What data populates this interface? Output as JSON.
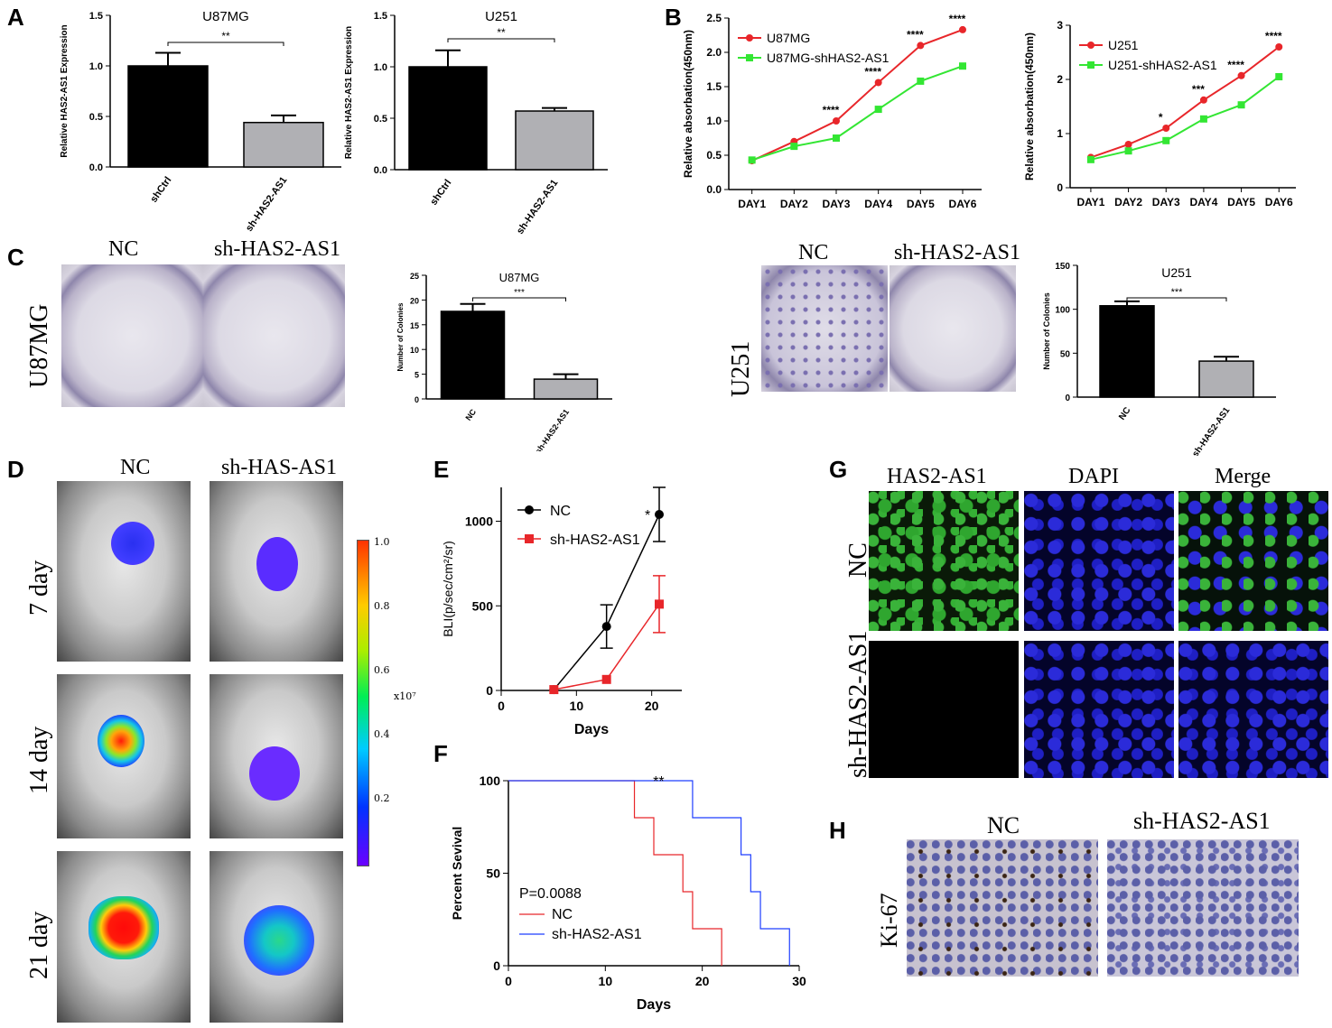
{
  "panels": {
    "a": "A",
    "b": "B",
    "c": "C",
    "d": "D",
    "e": "E",
    "f": "F",
    "g": "G",
    "h": "H"
  },
  "photo_labels": {
    "c_nc": "NC",
    "c_sh": "sh-HAS2-AS1",
    "c_u87": "U87MG",
    "c2_nc": "NC",
    "c2_sh": "sh-HAS2-AS1",
    "c2_u251": "U251",
    "d_nc": "NC",
    "d_sh": "sh-HAS-AS1",
    "d_row1": "7 day",
    "d_row2": "14 day",
    "d_row3": "21 day",
    "d_colorbar_ticks": [
      "1.0",
      "0.8",
      "0.6",
      "0.4",
      "0.2"
    ],
    "d_colorbar_unit": "x10⁷",
    "g_col1": "HAS2-AS1",
    "g_col2": "DAPI",
    "g_col3": "Merge",
    "g_row1": "NC",
    "g_row2": "sh-HAS2-AS1",
    "h_col1": "NC",
    "h_col2": "sh-HAS2-AS1",
    "h_row": "Ki-67"
  },
  "colors": {
    "red": "#e8262a",
    "green": "#33e633",
    "blue": "#1f3fff",
    "bar_black": "#000000",
    "bar_gray": "#b0b0b4"
  },
  "chart_data": [
    {
      "id": "A1",
      "type": "bar",
      "title": "U87MG",
      "ylabel": "Relative HAS2-AS1 Expression",
      "categories": [
        "shCtrl",
        "sh-HAS2-AS1"
      ],
      "values": [
        1.0,
        0.44
      ],
      "errors": [
        0.13,
        0.07
      ],
      "ylim": [
        0,
        1.5
      ],
      "yticks": [
        "0.0",
        "0.5",
        "1.0",
        "1.5"
      ],
      "sig": "**"
    },
    {
      "id": "A2",
      "type": "bar",
      "title": "U251",
      "ylabel": "Relative HAS2-AS1 Expression",
      "categories": [
        "shCtrl",
        "sh-HAS2-AS1"
      ],
      "values": [
        1.0,
        0.57
      ],
      "errors": [
        0.16,
        0.03
      ],
      "ylim": [
        0,
        1.5
      ],
      "yticks": [
        "0.0",
        "0.5",
        "1.0",
        "1.5"
      ],
      "sig": "**"
    },
    {
      "id": "B1",
      "type": "line",
      "ylabel": "Relative absorbation(450nm)",
      "categories": [
        "DAY1",
        "DAY2",
        "DAY3",
        "DAY4",
        "DAY5",
        "DAY6"
      ],
      "ylim": [
        0,
        2.5
      ],
      "yticks": [
        "0.0",
        "0.5",
        "1.0",
        "1.5",
        "2.0",
        "2.5"
      ],
      "series": [
        {
          "name": "U87MG",
          "values": [
            0.42,
            0.7,
            1.0,
            1.56,
            2.1,
            2.33
          ]
        },
        {
          "name": "U87MG-shHAS2-AS1",
          "values": [
            0.43,
            0.63,
            0.75,
            1.17,
            1.58,
            1.8
          ]
        }
      ],
      "sig": [
        "",
        "",
        "****",
        "****",
        "****",
        "****"
      ]
    },
    {
      "id": "B2",
      "type": "line",
      "ylabel": "Relative absorbation(450nm)",
      "categories": [
        "DAY1",
        "DAY2",
        "DAY3",
        "DAY4",
        "DAY5",
        "DAY6"
      ],
      "ylim": [
        0,
        3
      ],
      "yticks": [
        "0",
        "1",
        "2",
        "3"
      ],
      "series": [
        {
          "name": "U251",
          "values": [
            0.56,
            0.8,
            1.1,
            1.62,
            2.07,
            2.6
          ]
        },
        {
          "name": "U251-shHAS2-AS1",
          "values": [
            0.52,
            0.68,
            0.87,
            1.27,
            1.53,
            2.05
          ]
        }
      ],
      "sig": [
        "",
        "",
        "*",
        "***",
        "****",
        "****"
      ]
    },
    {
      "id": "C1",
      "type": "bar",
      "title": "U87MG",
      "ylabel": "Number of Colonies",
      "categories": [
        "NC",
        "sh-HAS2-AS1"
      ],
      "values": [
        17.7,
        4.0
      ],
      "errors": [
        1.5,
        1.0
      ],
      "ylim": [
        0,
        25
      ],
      "yticks": [
        "0",
        "5",
        "10",
        "15",
        "20",
        "25"
      ],
      "sig": "***"
    },
    {
      "id": "C2",
      "type": "bar",
      "title": "U251",
      "ylabel": "Number of Colonies",
      "categories": [
        "NC",
        "sh-HAS2-AS1"
      ],
      "values": [
        104,
        41
      ],
      "errors": [
        5,
        5
      ],
      "ylim": [
        0,
        150
      ],
      "yticks": [
        "0",
        "50",
        "100",
        "150"
      ],
      "sig": "***"
    },
    {
      "id": "E",
      "type": "line",
      "xlabel": "Days",
      "ylabel": "BLI(p/sec/cm²/sr)",
      "xlim": [
        0,
        24
      ],
      "xticks": [
        "0",
        "10",
        "20"
      ],
      "ylim": [
        0,
        1200
      ],
      "yticks": [
        "0",
        "500",
        "1000"
      ],
      "series": [
        {
          "name": "NC",
          "x": [
            7,
            14,
            21
          ],
          "values": [
            5,
            378,
            1040
          ],
          "errors": [
            0,
            128,
            160
          ]
        },
        {
          "name": "sh-HAS2-AS1",
          "x": [
            7,
            14,
            21
          ],
          "values": [
            5,
            65,
            510
          ],
          "errors": [
            0,
            0,
            168
          ]
        }
      ],
      "sig": "*"
    },
    {
      "id": "F",
      "type": "line",
      "xlabel": "Days",
      "ylabel": "Percent Sevival",
      "xlim": [
        0,
        30
      ],
      "xticks": [
        "0",
        "10",
        "20",
        "30"
      ],
      "ylim": [
        0,
        100
      ],
      "yticks": [
        "0",
        "50",
        "100"
      ],
      "annotation": "P=0.0088",
      "series": [
        {
          "name": "NC",
          "x": [
            0,
            13,
            13,
            15,
            15,
            18,
            18,
            19,
            19,
            22,
            22
          ],
          "values": [
            100,
            100,
            80,
            80,
            60,
            60,
            40,
            40,
            20,
            20,
            0
          ]
        },
        {
          "name": "sh-HAS2-AS1",
          "x": [
            0,
            19,
            19,
            24,
            24,
            25,
            25,
            26,
            26,
            29,
            29
          ],
          "values": [
            100,
            100,
            80,
            80,
            60,
            60,
            40,
            40,
            20,
            20,
            0
          ]
        }
      ],
      "sig": "**"
    }
  ]
}
